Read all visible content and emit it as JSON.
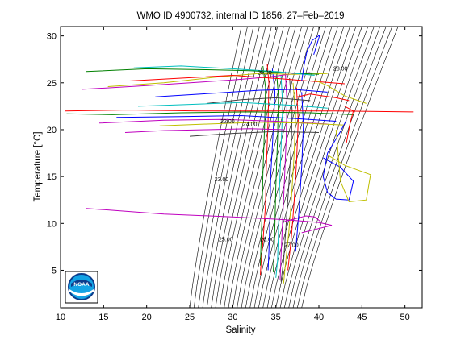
{
  "title": "WMO ID 4900732, internal ID 1856, 27–Feb–2019",
  "logo_text": "NOAA",
  "chart_data": {
    "type": "line",
    "title": "WMO ID 4900732, internal ID 1856, 27–Feb–2019",
    "xlabel": "Salinity",
    "ylabel": "Temperature [°C]",
    "xlim": [
      10,
      52
    ],
    "ylim": [
      1,
      31
    ],
    "x_ticks": [
      10,
      15,
      20,
      25,
      30,
      35,
      40,
      45,
      50
    ],
    "y_ticks": [
      5,
      10,
      15,
      20,
      25,
      30
    ],
    "grid": false,
    "legend": "none",
    "series_colors": [
      "#0000ff",
      "#008000",
      "#ff0000",
      "#00bfbf",
      "#bf00bf",
      "#bfbf00",
      "#404040"
    ],
    "density_contours": {
      "color": "#000000",
      "lines": [
        {
          "x_at_ymin": 25.0,
          "x_at_ymax": 31.0
        },
        {
          "x_at_ymin": 25.5,
          "x_at_ymax": 31.7
        },
        {
          "x_at_ymin": 26.0,
          "x_at_ymax": 32.4
        },
        {
          "x_at_ymin": 26.5,
          "x_at_ymax": 33.1
        },
        {
          "x_at_ymin": 27.0,
          "x_at_ymax": 33.8
        },
        {
          "x_at_ymin": 27.5,
          "x_at_ymax": 34.5
        },
        {
          "x_at_ymin": 28.0,
          "x_at_ymax": 35.2
        },
        {
          "x_at_ymin": 28.5,
          "x_at_ymax": 35.9
        },
        {
          "x_at_ymin": 29.0,
          "x_at_ymax": 36.6
        },
        {
          "x_at_ymin": 29.5,
          "x_at_ymax": 37.3
        },
        {
          "x_at_ymin": 30.0,
          "x_at_ymax": 38.0
        },
        {
          "x_at_ymin": 30.5,
          "x_at_ymax": 38.7
        },
        {
          "x_at_ymin": 31.0,
          "x_at_ymax": 39.4
        },
        {
          "x_at_ymin": 31.5,
          "x_at_ymax": 40.1
        },
        {
          "x_at_ymin": 32.0,
          "x_at_ymax": 40.8
        },
        {
          "x_at_ymin": 32.5,
          "x_at_ymax": 41.5
        },
        {
          "x_at_ymin": 33.0,
          "x_at_ymax": 42.2
        },
        {
          "x_at_ymin": 33.5,
          "x_at_ymax": 42.9
        },
        {
          "x_at_ymin": 34.0,
          "x_at_ymax": 43.6
        },
        {
          "x_at_ymin": 34.5,
          "x_at_ymax": 44.3
        },
        {
          "x_at_ymin": 35.0,
          "x_at_ymax": 45.0
        },
        {
          "x_at_ymin": 35.5,
          "x_at_ymax": 45.7
        },
        {
          "x_at_ymin": 36.0,
          "x_at_ymax": 46.4
        },
        {
          "x_at_ymin": 36.5,
          "x_at_ymax": 47.1
        },
        {
          "x_at_ymin": 37.0,
          "x_at_ymax": 47.8
        },
        {
          "x_at_ymin": 37.5,
          "x_at_ymax": 48.5
        },
        {
          "x_at_ymin": 38.0,
          "x_at_ymax": 49.2
        }
      ]
    },
    "contour_labels": [
      {
        "text": "22.00",
        "x": 29.4,
        "y": 20.7
      },
      {
        "text": "23.00",
        "x": 28.7,
        "y": 14.5
      },
      {
        "text": "24.00",
        "x": 32.0,
        "y": 20.4
      },
      {
        "text": "25.00",
        "x": 33.7,
        "y": 25.9
      },
      {
        "text": "25.00",
        "x": 29.2,
        "y": 8.1
      },
      {
        "text": "26.00",
        "x": 34.0,
        "y": 8.1
      },
      {
        "text": "27.00",
        "x": 36.8,
        "y": 7.5
      },
      {
        "text": "28.00",
        "x": 42.5,
        "y": 26.3
      }
    ],
    "series": [
      {
        "color": "#ff0000",
        "x": [
          34.0,
          34.2,
          34.1,
          33.9,
          33.8,
          33.5,
          33.3,
          33.2
        ],
        "y": [
          27.0,
          25.0,
          21.0,
          16.0,
          12.0,
          8.0,
          6.0,
          4.5
        ]
      },
      {
        "color": "#0000ff",
        "x": [
          34.6,
          34.9,
          34.7,
          34.4,
          34.3,
          34.2,
          34.1
        ],
        "y": [
          26.5,
          24.0,
          20.0,
          15.0,
          10.0,
          7.0,
          5.0
        ]
      },
      {
        "color": "#008000",
        "x": [
          35.1,
          35.3,
          35.2,
          35.0,
          34.9,
          34.8,
          34.7
        ],
        "y": [
          26.0,
          23.5,
          19.0,
          14.0,
          10.0,
          6.5,
          4.8
        ]
      },
      {
        "color": "#00bfbf",
        "x": [
          35.6,
          35.8,
          35.6,
          35.4,
          35.3,
          35.2,
          35.0
        ],
        "y": [
          25.8,
          22.5,
          18.0,
          13.0,
          9.0,
          6.0,
          4.2
        ]
      },
      {
        "color": "#bf00bf",
        "x": [
          36.1,
          36.3,
          36.2,
          36.0,
          35.8,
          35.6,
          35.5
        ],
        "y": [
          26.2,
          23.0,
          19.0,
          14.5,
          10.5,
          6.5,
          4.0
        ]
      },
      {
        "color": "#404040",
        "x": [
          36.6,
          36.9,
          36.8,
          36.5,
          36.2,
          35.9,
          35.6
        ],
        "y": [
          25.5,
          22.0,
          18.5,
          14.0,
          10.0,
          6.0,
          3.8
        ]
      },
      {
        "color": "#bfbf00",
        "x": [
          37.0,
          37.3,
          37.1,
          36.8,
          36.5,
          36.1,
          35.9
        ],
        "y": [
          25.0,
          21.5,
          17.0,
          12.5,
          9.0,
          5.5,
          3.6
        ]
      },
      {
        "color": "#ff0000",
        "x": [
          37.4,
          37.6,
          37.4,
          37.1,
          36.8,
          36.4
        ],
        "y": [
          24.5,
          21.0,
          16.5,
          12.0,
          8.5,
          5.0
        ]
      },
      {
        "color": "#0000ff",
        "x": [
          38.0,
          38.2,
          38.0,
          37.7,
          37.3
        ],
        "y": [
          24.0,
          20.5,
          16.0,
          11.5,
          7.0
        ]
      },
      {
        "color": "#008000",
        "x": [
          33.5,
          33.8,
          33.7,
          33.5,
          33.4,
          33.2
        ],
        "y": [
          26.8,
          24.5,
          20.5,
          15.5,
          11.0,
          5.5
        ]
      },
      {
        "color": "#bf00bf",
        "x": [
          12.5,
          20.0,
          30.0,
          34.0,
          36.5,
          39.0
        ],
        "y": [
          24.3,
          24.7,
          25.3,
          25.6,
          25.9,
          26.1
        ]
      },
      {
        "color": "#bfbf00",
        "x": [
          15.5,
          22.0,
          28.0,
          33.0,
          37.0,
          41.0
        ],
        "y": [
          24.6,
          25.0,
          25.6,
          26.0,
          25.9,
          26.0
        ]
      },
      {
        "color": "#008000",
        "x": [
          13.0,
          20.0,
          27.0,
          32.0,
          36.0,
          40.0
        ],
        "y": [
          26.2,
          26.5,
          26.4,
          26.3,
          26.1,
          25.9
        ]
      },
      {
        "color": "#0000ff",
        "x": [
          21.0,
          28.0,
          33.0,
          37.0,
          41.0
        ],
        "y": [
          23.5,
          23.9,
          24.2,
          24.3,
          24.0
        ]
      },
      {
        "color": "#00bfbf",
        "x": [
          18.5,
          24.0,
          30.0,
          35.0,
          39.5
        ],
        "y": [
          26.6,
          26.8,
          26.5,
          26.2,
          25.8
        ]
      },
      {
        "color": "#ff0000",
        "x": [
          18.0,
          24.0,
          30.0,
          36.0,
          43.0
        ],
        "y": [
          25.2,
          25.5,
          25.8,
          25.4,
          24.9
        ]
      },
      {
        "color": "#404040",
        "x": [
          27.0,
          31.0,
          35.0,
          39.0
        ],
        "y": [
          22.8,
          23.2,
          23.4,
          23.1
        ]
      },
      {
        "color": "#ff0000",
        "x": [
          10.5,
          18.0,
          26.0,
          34.0,
          42.0,
          51.0
        ],
        "y": [
          22.0,
          22.1,
          22.0,
          22.0,
          22.0,
          21.9
        ]
      },
      {
        "color": "#008000",
        "x": [
          10.7,
          16.0,
          24.0,
          32.0,
          39.0,
          44.0
        ],
        "y": [
          21.7,
          21.6,
          21.8,
          21.9,
          21.8,
          21.6
        ]
      },
      {
        "color": "#0000ff",
        "x": [
          16.5,
          24.0,
          31.0,
          37.0,
          42.0
        ],
        "y": [
          21.3,
          21.4,
          21.5,
          21.2,
          20.9
        ]
      },
      {
        "color": "#bf00bf",
        "x": [
          14.5,
          22.0,
          29.0,
          35.0,
          41.0
        ],
        "y": [
          20.7,
          21.0,
          21.1,
          20.9,
          20.6
        ]
      },
      {
        "color": "#bfbf00",
        "x": [
          21.5,
          27.0,
          33.0,
          38.0,
          43.0
        ],
        "y": [
          20.4,
          20.6,
          20.8,
          20.7,
          20.5
        ]
      },
      {
        "color": "#bf00bf",
        "x": [
          17.5,
          22.0,
          27.0,
          32.0,
          36.0
        ],
        "y": [
          19.7,
          19.9,
          20.0,
          20.1,
          20.0
        ]
      },
      {
        "color": "#00bfbf",
        "x": [
          19.0,
          25.0,
          31.0,
          37.0,
          41.0
        ],
        "y": [
          22.5,
          22.7,
          22.9,
          22.6,
          22.3
        ]
      },
      {
        "color": "#404040",
        "x": [
          25.0,
          30.0,
          35.0,
          40.0
        ],
        "y": [
          19.3,
          19.6,
          19.8,
          19.7
        ]
      },
      {
        "color": "#0000ff",
        "x": [
          40.5,
          42.5,
          44.0,
          43.5,
          42.0,
          41.0,
          40.5,
          41.0,
          42.5,
          43.2
        ],
        "y": [
          17.0,
          16.0,
          14.5,
          12.5,
          12.6,
          13.3,
          15.0,
          17.5,
          19.8,
          21.0
        ]
      },
      {
        "color": "#bfbf00",
        "x": [
          41.0,
          43.0,
          46.0,
          45.5,
          43.5,
          42.5,
          42.0
        ],
        "y": [
          17.3,
          16.2,
          15.2,
          12.5,
          12.3,
          14.5,
          20.0
        ]
      },
      {
        "color": "#ff0000",
        "x": [
          43.0,
          44.0,
          43.6,
          43.2
        ],
        "y": [
          22.5,
          22.0,
          20.6,
          18.6
        ]
      },
      {
        "color": "#bf00bf",
        "x": [
          13.0,
          22.0,
          30.0,
          36.0,
          40.0,
          41.5,
          38.0
        ],
        "y": [
          11.6,
          11.0,
          10.7,
          10.4,
          10.1,
          9.8,
          9.0
        ]
      },
      {
        "color": "#bf00bf",
        "x": [
          36.0,
          38.5,
          39.5,
          40.2
        ],
        "y": [
          10.2,
          10.8,
          10.7,
          10.2
        ]
      },
      {
        "color": "#0000ff",
        "x": [
          38.0,
          38.3,
          38.6,
          39.2,
          40.1,
          39.4
        ],
        "y": [
          25.2,
          27.0,
          28.3,
          29.5,
          30.1,
          28.0
        ]
      },
      {
        "color": "#bfbf00",
        "x": [
          39.5,
          41.0,
          43.0,
          45.5
        ],
        "y": [
          25.3,
          24.7,
          23.6,
          22.8
        ]
      },
      {
        "color": "#ff0000",
        "x": [
          37.5,
          39.0,
          40.5,
          42.0,
          43.5
        ],
        "y": [
          23.5,
          23.8,
          23.6,
          23.4,
          23.1
        ]
      }
    ]
  }
}
